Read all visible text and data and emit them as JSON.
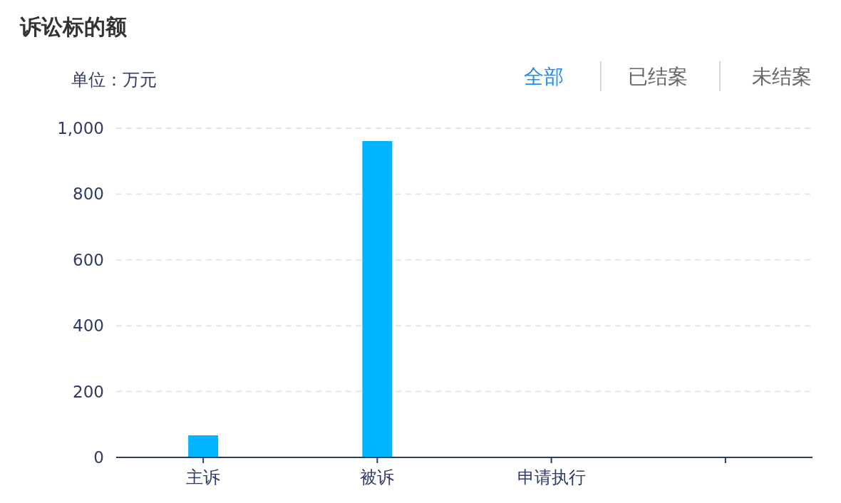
{
  "chart_data": {
    "type": "bar",
    "title": "诉讼标的额",
    "ylabel": "单位：万元",
    "categories": [
      "主诉",
      "被诉",
      "申请执行",
      null
    ],
    "values": [
      67,
      961,
      2,
      0
    ],
    "color": "#00b4ff",
    "ylim": [
      0,
      1000
    ],
    "yticks": [
      0,
      200,
      400,
      600,
      800,
      {
        "value": 1000,
        "label": "1,000"
      }
    ],
    "grid": "y",
    "annotations": [
      "全部",
      "已结案",
      "未结案"
    ]
  }
}
